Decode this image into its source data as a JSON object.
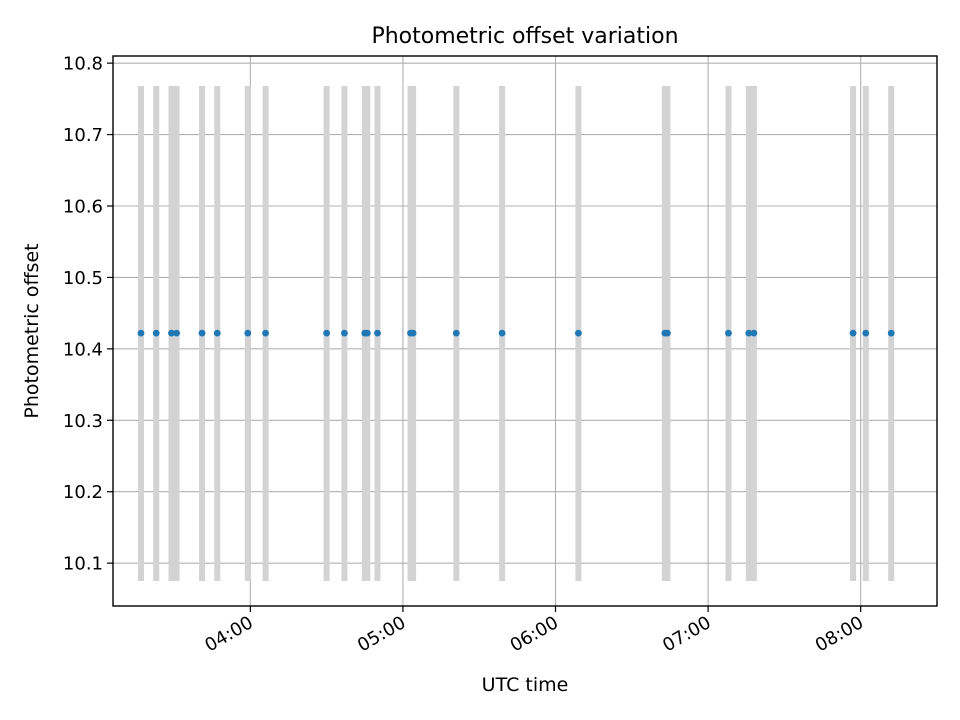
{
  "chart_data": {
    "type": "scatter",
    "title": "Photometric offset variation",
    "xlabel": "UTC time",
    "ylabel": "Photometric offset",
    "x_axis": {
      "unit": "UTC time (HH:MM)",
      "range": [
        "03:06",
        "08:30"
      ],
      "ticks": [
        "04:00",
        "05:00",
        "06:00",
        "07:00",
        "08:00"
      ]
    },
    "y_axis": {
      "range": [
        10.04,
        10.81
      ],
      "ticks": [
        10.1,
        10.2,
        10.3,
        10.4,
        10.5,
        10.6,
        10.7,
        10.8
      ],
      "tick_labels": [
        "10.1",
        "10.2",
        "10.3",
        "10.4",
        "10.5",
        "10.6",
        "10.7",
        "10.8"
      ]
    },
    "grid": true,
    "series": [
      {
        "color": "#1f77b4",
        "marker": "dot",
        "x": [
          "03:17",
          "03:23",
          "03:29",
          "03:31",
          "03:41",
          "03:47",
          "03:59",
          "04:06",
          "04:30",
          "04:37",
          "04:45",
          "04:46",
          "04:50",
          "05:03",
          "05:04",
          "05:21",
          "05:39",
          "06:09",
          "06:43",
          "06:44",
          "07:08",
          "07:16",
          "07:18",
          "07:57",
          "08:02",
          "08:12"
        ],
        "y": [
          10.422,
          10.422,
          10.422,
          10.422,
          10.422,
          10.422,
          10.422,
          10.422,
          10.422,
          10.422,
          10.422,
          10.422,
          10.422,
          10.422,
          10.422,
          10.422,
          10.422,
          10.422,
          10.422,
          10.422,
          10.422,
          10.422,
          10.422,
          10.422,
          10.422,
          10.422
        ]
      }
    ],
    "vertical_bands": {
      "color": "#d3d3d3",
      "y_range": [
        10.075,
        10.768
      ],
      "x": [
        "03:17",
        "03:23",
        "03:29",
        "03:31",
        "03:41",
        "03:47",
        "03:59",
        "04:06",
        "04:30",
        "04:37",
        "04:45",
        "04:46",
        "04:50",
        "05:03",
        "05:04",
        "05:21",
        "05:39",
        "06:09",
        "06:43",
        "06:44",
        "07:08",
        "07:16",
        "07:18",
        "07:57",
        "08:02",
        "08:12"
      ]
    }
  }
}
